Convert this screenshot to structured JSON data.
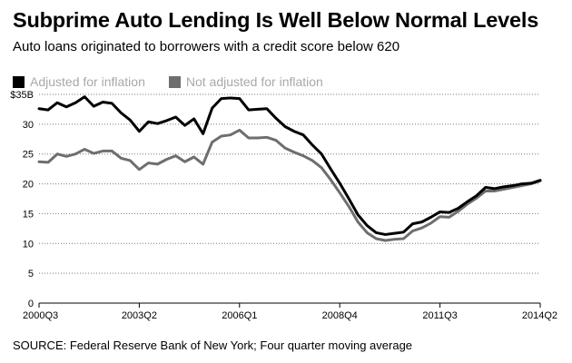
{
  "title": "Subprime Auto Lending Is Well Below Normal Levels",
  "subtitle": "Auto loans originated to borrowers with a credit score below 620",
  "source": "SOURCE: Federal Reserve Bank of New York; Four quarter moving average",
  "chart_data": {
    "type": "line",
    "title": "Subprime Auto Lending Is Well Below Normal Levels",
    "subtitle": "Auto loans originated to borrowers with a credit score below 620",
    "xlabel": "",
    "ylabel": "",
    "y_unit_prefix": "$",
    "y_unit_suffix": "B",
    "ylim": [
      0,
      35
    ],
    "yticks": [
      0,
      5,
      10,
      15,
      20,
      25,
      30,
      35
    ],
    "ytick_labels": [
      "0",
      "5",
      "10",
      "15",
      "20",
      "25",
      "30",
      "$35B"
    ],
    "x_start": "2000Q3",
    "x_end": "2014Q2",
    "xticks": [
      "2000Q3",
      "2003Q2",
      "2006Q1",
      "2008Q4",
      "2011Q3",
      "2014Q2"
    ],
    "grid": "horizontal dotted",
    "legend_position": "top-left",
    "series": [
      {
        "name": "Adjusted for inflation",
        "color": "#000000",
        "values": [
          32.6,
          32.4,
          33.6,
          32.9,
          33.6,
          34.6,
          33.0,
          33.7,
          33.5,
          31.9,
          30.7,
          28.8,
          30.4,
          30.1,
          30.6,
          31.2,
          29.8,
          30.9,
          28.4,
          32.7,
          34.3,
          34.4,
          34.3,
          32.4,
          32.5,
          32.6,
          31.0,
          29.6,
          28.8,
          28.2,
          26.5,
          25.0,
          22.5,
          20.1,
          17.5,
          14.8,
          13.0,
          11.8,
          11.5,
          11.7,
          11.9,
          13.3,
          13.6,
          14.4,
          15.3,
          15.2,
          15.9,
          17.0,
          18.0,
          19.4,
          19.2,
          19.5,
          19.7,
          20.0,
          20.1,
          20.6
        ]
      },
      {
        "name": "Not adjusted for inflation",
        "color": "#6e6e6e",
        "values": [
          23.7,
          23.6,
          25.0,
          24.6,
          25.0,
          25.8,
          25.1,
          25.5,
          25.5,
          24.3,
          23.9,
          22.4,
          23.5,
          23.3,
          24.1,
          24.7,
          23.7,
          24.5,
          23.3,
          27.0,
          28.0,
          28.2,
          29.0,
          27.7,
          27.7,
          27.8,
          27.3,
          26.0,
          25.3,
          24.7,
          23.9,
          22.7,
          20.7,
          18.5,
          16.2,
          13.6,
          11.8,
          10.8,
          10.5,
          10.7,
          10.8,
          12.1,
          12.6,
          13.4,
          14.5,
          14.4,
          15.4,
          16.6,
          17.6,
          18.8,
          18.8,
          19.1,
          19.4,
          19.7,
          20.0,
          20.5
        ]
      }
    ]
  }
}
